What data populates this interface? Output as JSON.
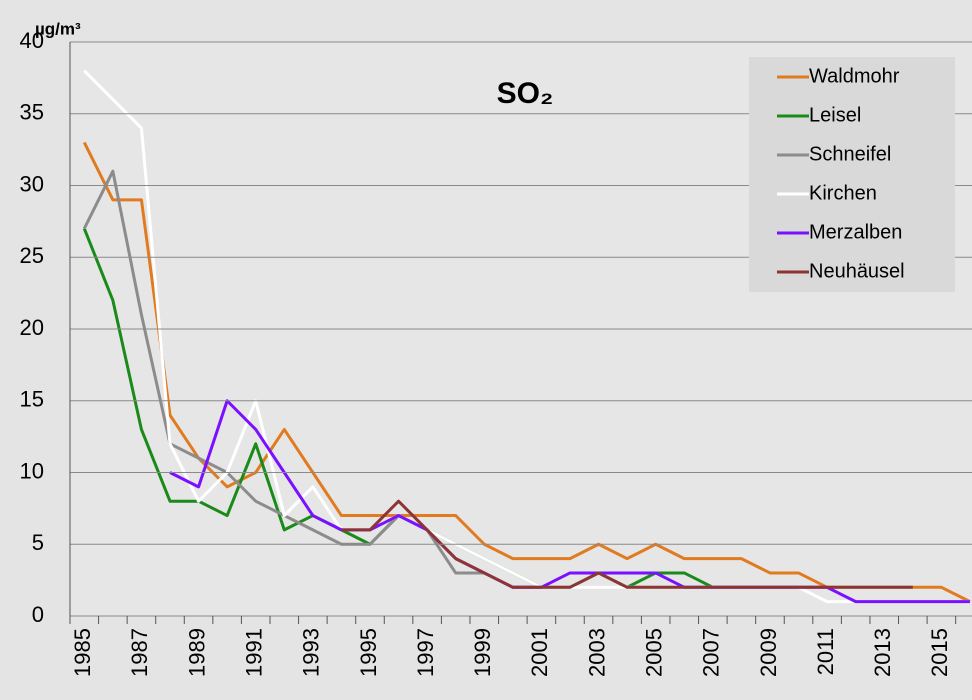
{
  "chart_data": {
    "type": "line",
    "title": "SO₂",
    "ylabel": "µg/m³",
    "categories": [
      "1985",
      null,
      "1987",
      null,
      "1989",
      null,
      "1991",
      null,
      "1993",
      null,
      "1995",
      null,
      "1997",
      null,
      "1999",
      null,
      "2001",
      null,
      "2003",
      null,
      "2005",
      null,
      "2007",
      null,
      "2009",
      null,
      "2011",
      null,
      "2013",
      null,
      "2015",
      null
    ],
    "series": [
      {
        "name": "Waldmohr",
        "color": "#e07b20",
        "values": [
          33,
          29,
          29,
          14,
          11,
          9,
          10,
          13,
          10,
          7,
          7,
          7,
          7,
          7,
          5,
          4,
          4,
          4,
          5,
          4,
          5,
          4,
          4,
          4,
          3,
          3,
          2,
          2,
          2,
          2,
          2,
          1
        ]
      },
      {
        "name": "Leisel",
        "color": "#1a8a1a",
        "values": [
          27,
          22,
          13,
          8,
          8,
          7,
          12,
          6,
          7,
          6,
          5,
          7,
          6,
          5,
          4,
          3,
          2,
          2,
          3,
          2,
          3,
          3,
          2,
          2,
          2,
          2,
          null,
          null,
          null,
          null,
          null,
          null
        ]
      },
      {
        "name": "Schneifel",
        "color": "#8c8c8c",
        "values": [
          27,
          31,
          21,
          12,
          11,
          10,
          8,
          7,
          6,
          5,
          5,
          7,
          6,
          3,
          3,
          2,
          2,
          2,
          3,
          2,
          2,
          2,
          2,
          2,
          2,
          2,
          null,
          null,
          null,
          null,
          null,
          null
        ]
      },
      {
        "name": "Kirchen",
        "color": "#ffffff",
        "values": [
          38,
          36,
          34,
          12,
          8,
          10,
          15,
          7,
          9,
          6,
          6,
          7,
          6,
          5,
          4,
          3,
          2,
          2,
          2,
          2,
          2,
          2,
          2,
          2,
          2,
          2,
          1,
          1,
          1,
          1,
          1,
          1
        ]
      },
      {
        "name": "Merzalben",
        "color": "#7a10ff",
        "values": [
          null,
          null,
          null,
          10,
          9,
          15,
          13,
          10,
          7,
          6,
          6,
          7,
          6,
          4,
          3,
          2,
          2,
          3,
          3,
          3,
          3,
          2,
          2,
          2,
          2,
          2,
          2,
          1,
          1,
          1,
          1,
          1
        ]
      },
      {
        "name": "Neuhäusel",
        "color": "#8c3535",
        "values": [
          null,
          null,
          null,
          null,
          null,
          null,
          null,
          null,
          null,
          6,
          6,
          8,
          6,
          4,
          3,
          2,
          2,
          2,
          3,
          2,
          2,
          2,
          2,
          2,
          2,
          2,
          2,
          2,
          2,
          2,
          null,
          null
        ]
      }
    ],
    "ylim": [
      0,
      40
    ],
    "yticks": [
      0,
      5,
      10,
      15,
      20,
      25,
      30,
      35,
      40
    ],
    "grid": true,
    "legend": "upper right"
  }
}
